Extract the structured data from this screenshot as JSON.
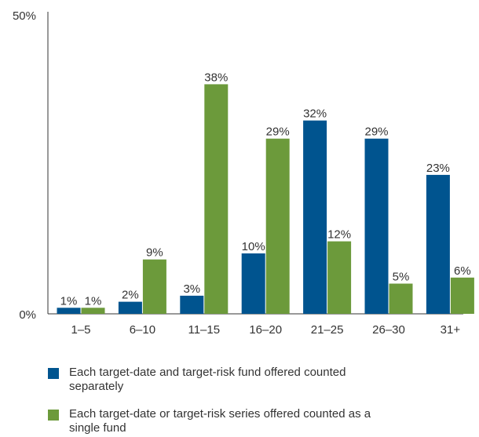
{
  "chart_data": {
    "type": "bar",
    "categories": [
      "1–5",
      "6–10",
      "11–15",
      "16–20",
      "21–25",
      "26–30",
      "31+"
    ],
    "series": [
      {
        "name": "Each target-date and target-risk fund offered counted separately",
        "values": [
          1,
          2,
          3,
          10,
          32,
          29,
          23
        ],
        "color": "#00548f"
      },
      {
        "name": "Each target-date or target-risk series offered counted as a single fund",
        "values": [
          1,
          9,
          38,
          29,
          12,
          5,
          6
        ],
        "color": "#6c9a3b"
      }
    ],
    "data_labels": [
      [
        "1%",
        "2%",
        "3%",
        "10%",
        "32%",
        "29%",
        "23%"
      ],
      [
        "1%",
        "9%",
        "38%",
        "29%",
        "12%",
        "5%",
        "6%"
      ]
    ],
    "y_ticks": [
      "0%",
      "50%"
    ],
    "ylim": [
      0,
      50
    ],
    "grid": false,
    "legend_position": "bottom"
  }
}
